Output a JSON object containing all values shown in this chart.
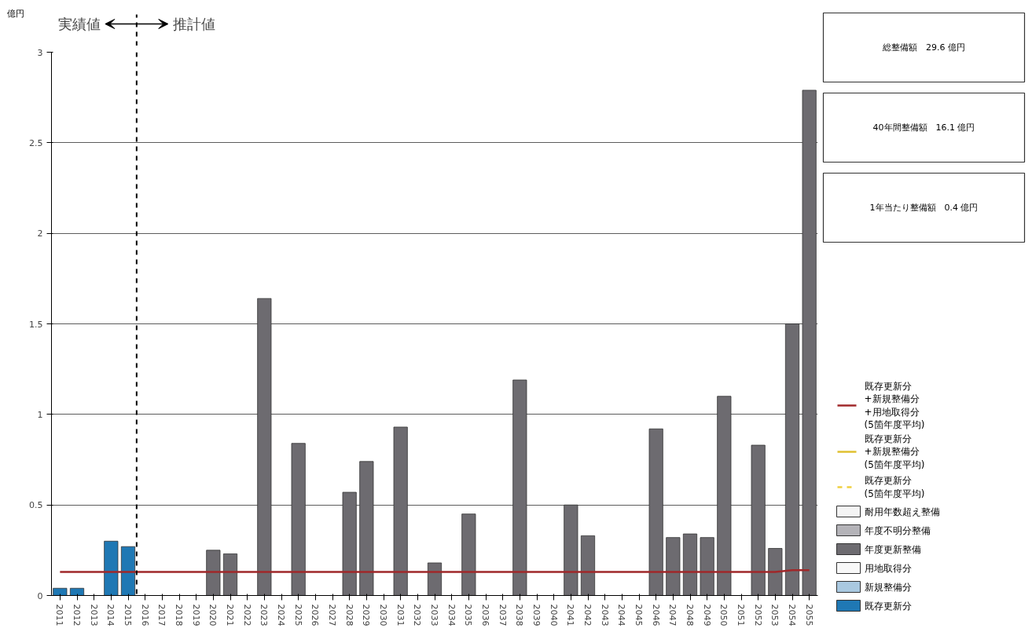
{
  "chart_data": {
    "type": "bar",
    "ylabel": "億円",
    "x": [
      2011,
      2012,
      2013,
      2014,
      2015,
      2016,
      2017,
      2018,
      2019,
      2020,
      2021,
      2022,
      2023,
      2024,
      2025,
      2026,
      2027,
      2028,
      2029,
      2030,
      2031,
      2032,
      2033,
      2034,
      2035,
      2036,
      2037,
      2038,
      2039,
      2040,
      2041,
      2042,
      2043,
      2044,
      2045,
      2046,
      2047,
      2048,
      2049,
      2050,
      2051,
      2052,
      2053,
      2054,
      2055
    ],
    "xlim": [
      2010.5,
      2055.5
    ],
    "xticks": [
      2011,
      2012,
      2013,
      2014,
      2015,
      2016,
      2017,
      2018,
      2019,
      2020,
      2021,
      2022,
      2023,
      2024,
      2025,
      2026,
      2027,
      2028,
      2029,
      2030,
      2031,
      2032,
      2033,
      2034,
      2035,
      2036,
      2037,
      2038,
      2039,
      2040,
      2041,
      2042,
      2043,
      2044,
      2045,
      2046,
      2047,
      2048,
      2049,
      2050,
      2051,
      2052,
      2053,
      2054,
      2055
    ],
    "ylim": [
      0,
      3
    ],
    "yticks": [
      0,
      0.5,
      1,
      1.5,
      2,
      2.5,
      3
    ],
    "grid": "y",
    "legend": "bottom right",
    "series": [
      {
        "name": "既存更新分",
        "color": "#1f78b4",
        "values": [
          0.04,
          0.04,
          null,
          0.3,
          0.27,
          null,
          null,
          null,
          null,
          null,
          null,
          null,
          null,
          null,
          null,
          null,
          null,
          null,
          null,
          null,
          null,
          null,
          null,
          null,
          null,
          null,
          null,
          null,
          null,
          null,
          null,
          null,
          null,
          null,
          null,
          null,
          null,
          null,
          null,
          null,
          null,
          null,
          null,
          null,
          null
        ]
      },
      {
        "name": "新規整備分",
        "color": "#a9c8e0",
        "values": [
          null,
          null,
          null,
          null,
          null,
          null,
          null,
          null,
          null,
          null,
          null,
          null,
          null,
          null,
          null,
          null,
          null,
          null,
          null,
          null,
          null,
          null,
          null,
          null,
          null,
          null,
          null,
          null,
          null,
          null,
          null,
          null,
          null,
          null,
          null,
          null,
          null,
          null,
          null,
          null,
          null,
          null,
          null,
          null,
          null
        ]
      },
      {
        "name": "用地取得分",
        "color": "#f8f8f8",
        "values": [
          null,
          null,
          null,
          null,
          null,
          null,
          null,
          null,
          null,
          null,
          null,
          null,
          null,
          null,
          null,
          null,
          null,
          null,
          null,
          null,
          null,
          null,
          null,
          null,
          null,
          null,
          null,
          null,
          null,
          null,
          null,
          null,
          null,
          null,
          null,
          null,
          null,
          null,
          null,
          null,
          null,
          null,
          null,
          null,
          null
        ]
      },
      {
        "name": "年度更新整備",
        "color": "#6d6b70",
        "values": [
          null,
          null,
          null,
          null,
          null,
          null,
          null,
          null,
          null,
          0.25,
          0.23,
          null,
          1.64,
          null,
          0.84,
          null,
          null,
          0.57,
          0.74,
          null,
          0.93,
          null,
          0.18,
          null,
          0.45,
          null,
          null,
          1.19,
          null,
          null,
          0.5,
          0.33,
          null,
          null,
          null,
          0.92,
          0.32,
          0.34,
          0.32,
          1.1,
          null,
          0.83,
          0.26,
          1.5,
          2.79
        ]
      },
      {
        "name": "年度不明分整備",
        "color": "#b4b3b8",
        "values": [
          null,
          null,
          null,
          null,
          null,
          null,
          null,
          null,
          null,
          null,
          null,
          null,
          null,
          null,
          null,
          null,
          null,
          null,
          null,
          null,
          null,
          null,
          null,
          null,
          null,
          null,
          null,
          null,
          null,
          null,
          null,
          null,
          null,
          null,
          null,
          null,
          null,
          null,
          null,
          null,
          null,
          null,
          null,
          null,
          null
        ]
      },
      {
        "name": "耐用年数超え整備",
        "color": "#f4f4f4",
        "values": [
          null,
          null,
          null,
          null,
          null,
          null,
          null,
          null,
          null,
          null,
          null,
          null,
          null,
          null,
          null,
          null,
          null,
          null,
          null,
          null,
          null,
          null,
          null,
          null,
          null,
          null,
          null,
          null,
          null,
          null,
          null,
          null,
          null,
          null,
          null,
          null,
          null,
          null,
          null,
          null,
          null,
          null,
          null,
          null,
          null
        ]
      },
      {
        "type": "line",
        "line_style": "dashed",
        "name": "既存更新分\n(5箇年度平均)",
        "color": "#f0d040",
        "values": [
          null,
          null,
          null,
          null,
          null,
          null,
          null,
          null,
          null,
          null,
          null,
          null,
          null,
          null,
          null,
          null,
          null,
          null,
          null,
          null,
          null,
          null,
          null,
          null,
          null,
          null,
          null,
          null,
          null,
          null,
          null,
          null,
          null,
          null,
          null,
          null,
          null,
          null,
          null,
          null,
          null,
          null,
          null,
          null,
          null
        ]
      },
      {
        "type": "line",
        "line_style": "solid",
        "name": "既存更新分\n+新規整備分\n(5箇年度平均)",
        "color": "#e0c030",
        "values": [
          null,
          null,
          null,
          null,
          null,
          null,
          null,
          null,
          null,
          null,
          null,
          null,
          null,
          null,
          null,
          null,
          null,
          null,
          null,
          null,
          null,
          null,
          null,
          null,
          null,
          null,
          null,
          null,
          null,
          null,
          null,
          null,
          null,
          null,
          null,
          null,
          null,
          null,
          null,
          null,
          null,
          null,
          null,
          null,
          null
        ]
      },
      {
        "type": "line",
        "line_style": "solid",
        "name": "既存更新分\n+新規整備分\n+用地取得分\n(5箇年度平均)",
        "color": "#a0282a",
        "values": [
          0.13,
          0.13,
          0.13,
          0.13,
          0.13,
          0.13,
          0.13,
          0.13,
          0.13,
          0.13,
          0.13,
          0.13,
          0.13,
          0.13,
          0.13,
          0.13,
          0.13,
          0.13,
          0.13,
          0.13,
          0.13,
          0.13,
          0.13,
          0.13,
          0.13,
          0.13,
          0.13,
          0.13,
          0.13,
          0.13,
          0.13,
          0.13,
          0.13,
          0.13,
          0.13,
          0.13,
          0.13,
          0.13,
          0.13,
          0.13,
          0.13,
          0.13,
          0.13,
          0.14,
          0.14
        ]
      }
    ],
    "ref_lines": [
      {
        "axis": "x",
        "value": 2015.5,
        "color": "#000000",
        "line_style": "dashed"
      }
    ],
    "annotations": [
      "実績値",
      "推計値",
      "総整備額　29.6 億円",
      "40年間整備額　16.1 億円",
      "1年当たり整備額　0.4 億円"
    ]
  }
}
